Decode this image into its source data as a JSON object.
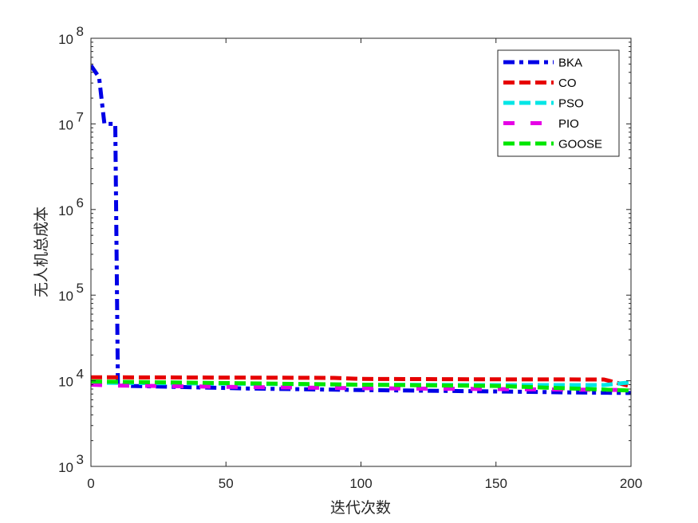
{
  "chart_data": {
    "type": "line",
    "title": "",
    "xlabel": "迭代次数",
    "ylabel": "无人机总成本",
    "xlim": [
      0,
      200
    ],
    "ylim": [
      1000,
      100000000
    ],
    "yscale": "log",
    "grid": false,
    "legend_position": "top-right",
    "x_ticks": [
      0,
      50,
      100,
      150,
      200
    ],
    "x_tick_labels": [
      "0",
      "50",
      "100",
      "150",
      "200"
    ],
    "y_ticks": [
      1000,
      10000,
      100000,
      1000000,
      10000000,
      100000000
    ],
    "y_tick_labels": [
      {
        "base": "10",
        "exp": "3"
      },
      {
        "base": "10",
        "exp": "4"
      },
      {
        "base": "10",
        "exp": "5"
      },
      {
        "base": "10",
        "exp": "6"
      },
      {
        "base": "10",
        "exp": "7"
      },
      {
        "base": "10",
        "exp": "8"
      }
    ],
    "series": [
      {
        "name": "BKA",
        "color": "#0000e6",
        "width": 5,
        "dash": "14,6,5,6",
        "points": [
          [
            0,
            48000000
          ],
          [
            3,
            35000000
          ],
          [
            5,
            10000000
          ],
          [
            9,
            10000000
          ],
          [
            10,
            9000
          ],
          [
            15,
            8700
          ],
          [
            60,
            8100
          ],
          [
            100,
            7800
          ],
          [
            150,
            7500
          ],
          [
            180,
            7300
          ],
          [
            200,
            7200
          ]
        ]
      },
      {
        "name": "CO",
        "color": "#e60000",
        "width": 5,
        "dash": "14,6",
        "points": [
          [
            0,
            11000
          ],
          [
            50,
            10900
          ],
          [
            90,
            10800
          ],
          [
            100,
            10500
          ],
          [
            150,
            10400
          ],
          [
            190,
            10350
          ],
          [
            200,
            8600
          ]
        ]
      },
      {
        "name": "PSO",
        "color": "#00e6e6",
        "width": 5,
        "dash": "14,6",
        "points": [
          [
            0,
            9500
          ],
          [
            20,
            9400
          ],
          [
            60,
            9200
          ],
          [
            100,
            9000
          ],
          [
            150,
            8900
          ],
          [
            190,
            8900
          ],
          [
            200,
            9600
          ]
        ]
      },
      {
        "name": "PIO",
        "color": "#e600e6",
        "width": 5,
        "dash": "14,20",
        "points": [
          [
            0,
            9000
          ],
          [
            10,
            8800
          ],
          [
            50,
            8500
          ],
          [
            100,
            8200
          ],
          [
            150,
            8000
          ],
          [
            200,
            7800
          ]
        ]
      },
      {
        "name": "GOOSE",
        "color": "#00e600",
        "width": 5,
        "dash": "14,6",
        "points": [
          [
            0,
            9800
          ],
          [
            50,
            9400
          ],
          [
            100,
            9000
          ],
          [
            150,
            8700
          ],
          [
            200,
            7700
          ]
        ]
      }
    ]
  }
}
